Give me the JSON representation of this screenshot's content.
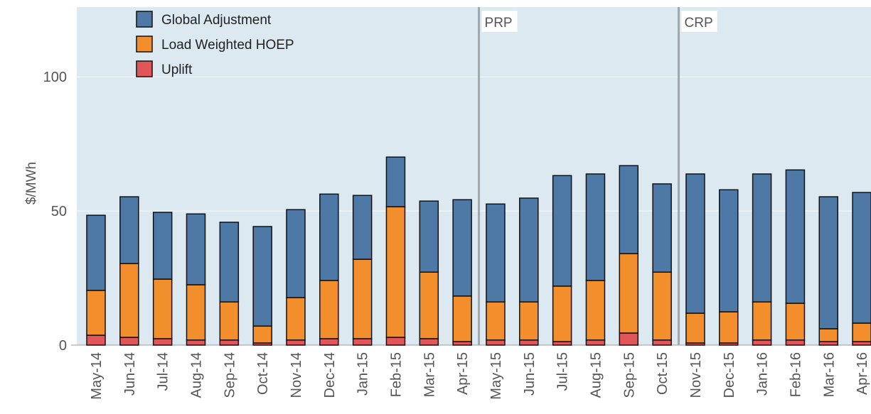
{
  "chart_data": {
    "type": "stacked_bar",
    "y_label": "$/MWh",
    "categories": [
      "May-14",
      "Jun-14",
      "Jul-14",
      "Aug-14",
      "Sep-14",
      "Oct-14",
      "Nov-14",
      "Dec-14",
      "Jan-15",
      "Feb-15",
      "Mar-15",
      "Apr-15",
      "May-15",
      "Jun-15",
      "Jul-15",
      "Aug-15",
      "Sep-15",
      "Oct-15",
      "Nov-15",
      "Dec-15",
      "Jan-16",
      "Feb-16",
      "Mar-16",
      "Apr-16"
    ],
    "series": [
      {
        "name": "Uplift",
        "color": "#e15759",
        "values": [
          3.7,
          2.9,
          2.4,
          1.9,
          1.9,
          0.8,
          1.9,
          2.4,
          2.4,
          2.9,
          2.4,
          1.3,
          1.9,
          1.9,
          1.3,
          1.9,
          4.5,
          1.9,
          0.8,
          0.8,
          1.9,
          1.9,
          1.3,
          1.3
        ]
      },
      {
        "name": "Load Weighted HOEP",
        "color": "#f28e2b",
        "values": [
          16.7,
          27.5,
          22.2,
          20.6,
          14.2,
          6.3,
          15.8,
          21.7,
          29.6,
          48.7,
          24.8,
          17.0,
          14.2,
          14.2,
          20.7,
          22.2,
          29.6,
          25.3,
          11.1,
          11.6,
          14.2,
          13.7,
          4.8,
          6.9
        ]
      },
      {
        "name": "Global Adjustment",
        "color": "#4e79a7",
        "values": [
          28.0,
          24.9,
          24.9,
          26.4,
          29.7,
          37.1,
          32.8,
          32.2,
          23.8,
          18.5,
          26.5,
          35.9,
          36.5,
          38.7,
          41.2,
          39.7,
          32.8,
          32.9,
          51.9,
          45.5,
          47.7,
          49.7,
          49.2,
          48.7
        ]
      }
    ],
    "ylim": [
      0,
      126
    ],
    "yticks": [
      0,
      50,
      100
    ],
    "grid": true,
    "annotations": [
      {
        "label": "PRP",
        "at": "May-15"
      },
      {
        "label": "CRP",
        "at": "Nov-15"
      }
    ]
  }
}
